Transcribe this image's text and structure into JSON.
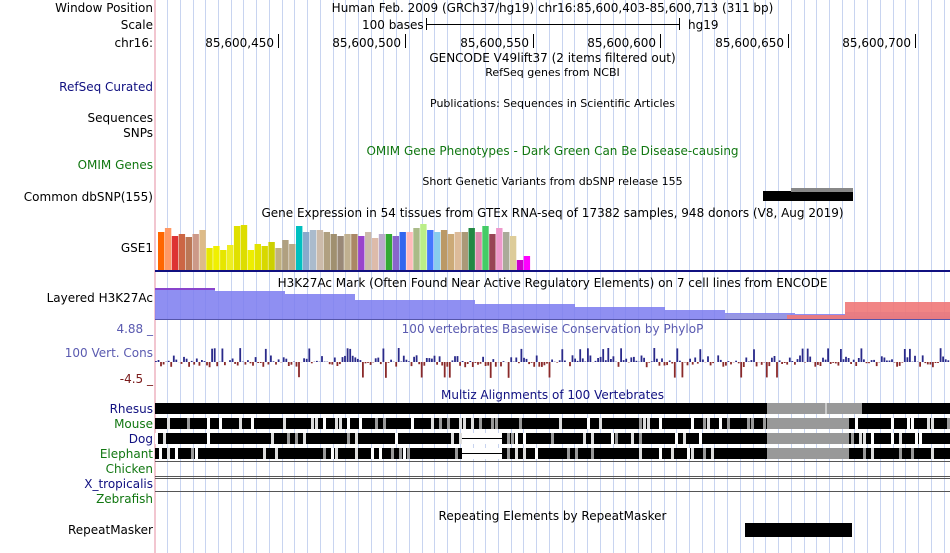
{
  "header": {
    "window_position_label": "Window Position",
    "window_position_text": "Human Feb. 2009 (GRCh37/hg19)   chr16:85,600,403-85,600,713 (311 bp)",
    "scale_label": "Scale",
    "scale_bases": "100 bases",
    "scale_assembly": "hg19",
    "chrom_label": "chr16:",
    "positions": [
      "85,600,450",
      "85,600,500",
      "85,600,550",
      "85,600,600",
      "85,600,650",
      "85,600,700"
    ]
  },
  "tracks": {
    "gencode_title": "GENCODE V49lift37 (2 items filtered out)",
    "refseq_label": "RefSeq Curated",
    "refseq_title": "RefSeq genes from NCBI",
    "publications_title": "Publications: Sequences in Scientific Articles",
    "sequences_label": "Sequences",
    "snps_label": "SNPs",
    "omim_label": "OMIM Genes",
    "omim_title": "OMIM Gene Phenotypes - Dark Green Can Be Disease-causing",
    "dbsnp_title": "Short Genetic Variants from dbSNP release 155",
    "dbsnp_label": "Common dbSNP(155)",
    "gtex_title": "Gene Expression in 54 tissues from GTEx RNA-seq of 17382 samples, 948 donors (V8, Aug 2019)",
    "gtex_label": "GSE1",
    "h3k27_label": "Layered H3K27Ac",
    "h3k27_title": "H3K27Ac Mark (Often Found Near Active Regulatory Elements) on 7 cell lines from ENCODE",
    "cons_max": "4.88 _",
    "cons_label": "100 Vert. Cons",
    "cons_min": "-4.5 _",
    "cons_title": "100 vertebrates Basewise Conservation by PhyloP",
    "multiz_title": "Multiz Alignments of 100 Vertebrates",
    "species": [
      "Rhesus",
      "Mouse",
      "Dog",
      "Elephant",
      "Chicken",
      "X_tropicalis",
      "Zebrafish"
    ],
    "repeat_title": "Repeating Elements by RepeatMasker",
    "repeat_label": "RepeatMasker"
  },
  "colors": {
    "navy": "#101080",
    "green": "#117711",
    "h3k27_blue": "#7b7bf0",
    "h3k27_red": "#f07878",
    "cons_pos": "#2a2a8a",
    "cons_neg": "#8a2a2a"
  }
}
